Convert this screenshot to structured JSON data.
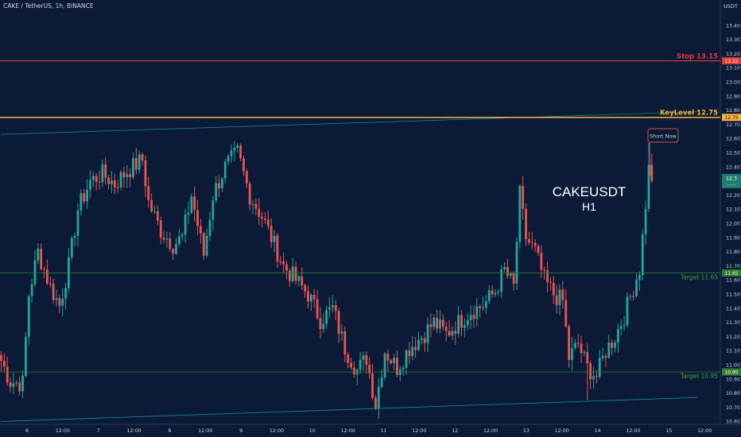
{
  "header": {
    "symbol_line": "CAKE / TetherUS, 1h, BINANCE"
  },
  "axis": {
    "currency": "USDT"
  },
  "overlay_title": {
    "line1": "CAKEUSDT",
    "line2": "H1"
  },
  "callout": {
    "label": "Short Now"
  },
  "colors": {
    "background": "#0b1a36",
    "bull": "#26a69a",
    "bear": "#ef5350",
    "stop": "#e53935",
    "keylevel": "#f5b23a",
    "target": "#2e7d32",
    "channel": "#1b8c9e",
    "text": "#d1d4dc"
  },
  "chart_data": {
    "type": "candlestick",
    "symbol": "CAKE / TetherUS",
    "interval": "1h",
    "exchange": "BINANCE",
    "ylim": [
      10.58,
      13.58
    ],
    "y_ticks": [
      10.6,
      10.7,
      10.8,
      10.9,
      11.0,
      11.1,
      11.2,
      11.3,
      11.4,
      11.5,
      11.6,
      11.7,
      11.8,
      11.9,
      12.0,
      12.1,
      12.2,
      12.3,
      12.4,
      12.5,
      12.6,
      12.7,
      12.8,
      12.9,
      13.0,
      13.1,
      13.2,
      13.3,
      13.4
    ],
    "y_tick_labels": [
      "10.60",
      "10.70",
      "10.80",
      "10.90",
      "11.00",
      "11.10",
      "11.20",
      "11.30",
      "11.40",
      "11.50",
      "11.60",
      "11.70",
      "11.80",
      "11.90",
      "12.00",
      "12.10",
      "12.20",
      "12.30",
      "12.40",
      "12.50",
      "12.60",
      "12.70",
      "12.80",
      "12.90",
      "13.00",
      "13.10",
      "13.20",
      "13.30",
      "13.40"
    ],
    "x_tick_labels": [
      "6",
      "12:00",
      "7",
      "12:00",
      "8",
      "12:00",
      "9",
      "12:00",
      "10",
      "12:00",
      "11",
      "12:00",
      "12",
      "12:00",
      "13",
      "12:00",
      "14",
      "12:00",
      "15",
      "12:00"
    ],
    "hlines": [
      {
        "name": "stop",
        "label": "Stop 13.15",
        "value": 13.15,
        "badge": "13.15"
      },
      {
        "name": "keylevel",
        "label": "KeyLevel 12.75",
        "value": 12.75,
        "badge": "12.75"
      },
      {
        "name": "target-1",
        "label": "Target 11.65",
        "value": 11.65,
        "badge": "11.65"
      },
      {
        "name": "target-2",
        "label": "Target 10.95",
        "value": 10.95,
        "badge": "10.95"
      }
    ],
    "channel": {
      "upper": [
        [
          0,
          12.63
        ],
        [
          227,
          12.79
        ]
      ],
      "lower": [
        [
          0,
          10.6
        ],
        [
          227,
          10.77
        ]
      ]
    },
    "last_price": {
      "value": 12.3,
      "label": "12.3"
    },
    "anchors": [
      [
        0,
        11.03
      ],
      [
        3,
        10.88
      ],
      [
        7,
        10.87
      ],
      [
        9,
        11.5
      ],
      [
        12,
        11.8
      ],
      [
        16,
        11.55
      ],
      [
        19,
        11.42
      ],
      [
        22,
        11.7
      ],
      [
        25,
        12.1
      ],
      [
        29,
        12.3
      ],
      [
        33,
        12.35
      ],
      [
        37,
        12.28
      ],
      [
        41,
        12.37
      ],
      [
        46,
        12.45
      ],
      [
        48,
        12.15
      ],
      [
        52,
        11.95
      ],
      [
        56,
        11.85
      ],
      [
        59,
        11.9
      ],
      [
        62,
        12.2
      ],
      [
        66,
        11.78
      ],
      [
        69,
        12.2
      ],
      [
        73,
        12.4
      ],
      [
        77,
        12.5
      ],
      [
        81,
        12.2
      ],
      [
        85,
        12.05
      ],
      [
        88,
        11.9
      ],
      [
        92,
        11.7
      ],
      [
        96,
        11.6
      ],
      [
        100,
        11.5
      ],
      [
        104,
        11.32
      ],
      [
        108,
        11.4
      ],
      [
        112,
        11.12
      ],
      [
        116,
        10.96
      ],
      [
        119,
        11.05
      ],
      [
        122,
        10.72
      ],
      [
        125,
        11.1
      ],
      [
        129,
        10.98
      ],
      [
        133,
        11.12
      ],
      [
        137,
        11.2
      ],
      [
        141,
        11.3
      ],
      [
        145,
        11.22
      ],
      [
        149,
        11.3
      ],
      [
        153,
        11.38
      ],
      [
        157,
        11.42
      ],
      [
        161,
        11.52
      ],
      [
        164,
        11.67
      ],
      [
        167,
        11.55
      ],
      [
        169,
        12.2
      ],
      [
        171,
        11.9
      ],
      [
        174,
        11.8
      ],
      [
        177,
        11.6
      ],
      [
        180,
        11.5
      ],
      [
        183,
        11.45
      ],
      [
        185,
        11.05
      ],
      [
        188,
        11.15
      ],
      [
        191,
        10.98
      ],
      [
        194,
        10.92
      ],
      [
        197,
        11.1
      ],
      [
        200,
        11.2
      ],
      [
        203,
        11.35
      ],
      [
        206,
        11.55
      ],
      [
        208,
        11.68
      ],
      [
        209,
        11.9
      ],
      [
        211,
        12.38
      ],
      [
        212,
        12.3
      ]
    ]
  }
}
